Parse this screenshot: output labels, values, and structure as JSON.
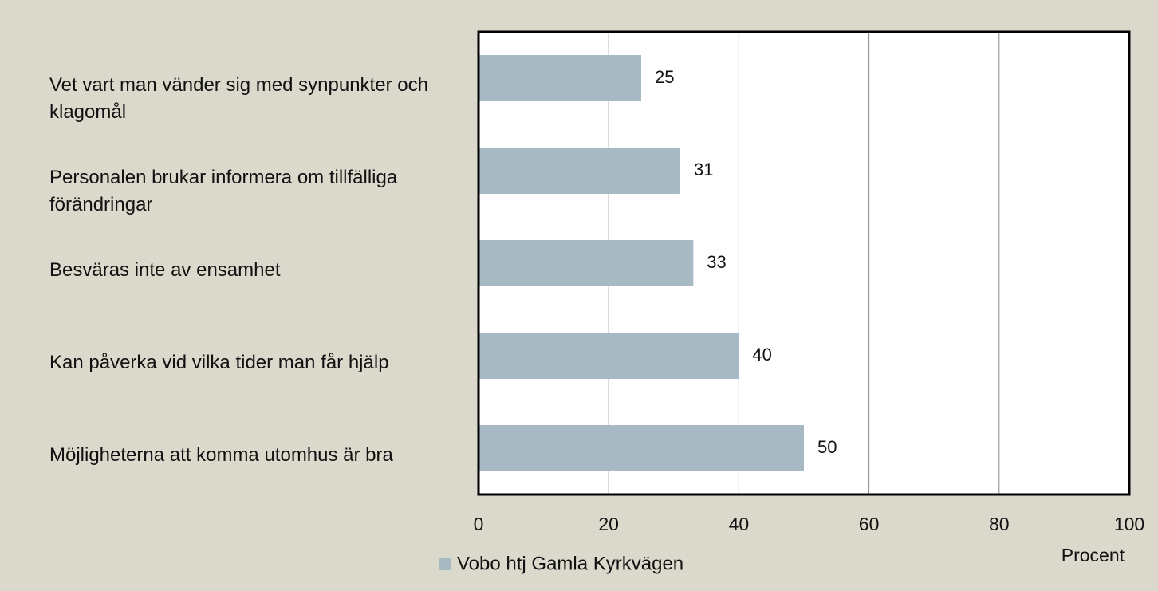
{
  "chart_data": {
    "type": "barh",
    "categories": [
      "Vet vart man vänder sig med synpunkter och klagomål",
      "Personalen brukar informera om tillfälliga förändringar",
      "Besväras inte av ensamhet",
      "Kan påverka vid vilka tider man får hjälp",
      "Möjligheterna att komma utomhus är bra"
    ],
    "series": [
      {
        "name": "Vobo htj Gamla Kyrkvägen",
        "color": "#a7bac4",
        "values": [
          25,
          31,
          33,
          40,
          50
        ]
      }
    ],
    "xlim": [
      0,
      100
    ],
    "xticks": [
      0,
      20,
      40,
      60,
      80,
      100
    ],
    "grid": true,
    "xlabel": "Procent",
    "legend": "bottom"
  }
}
